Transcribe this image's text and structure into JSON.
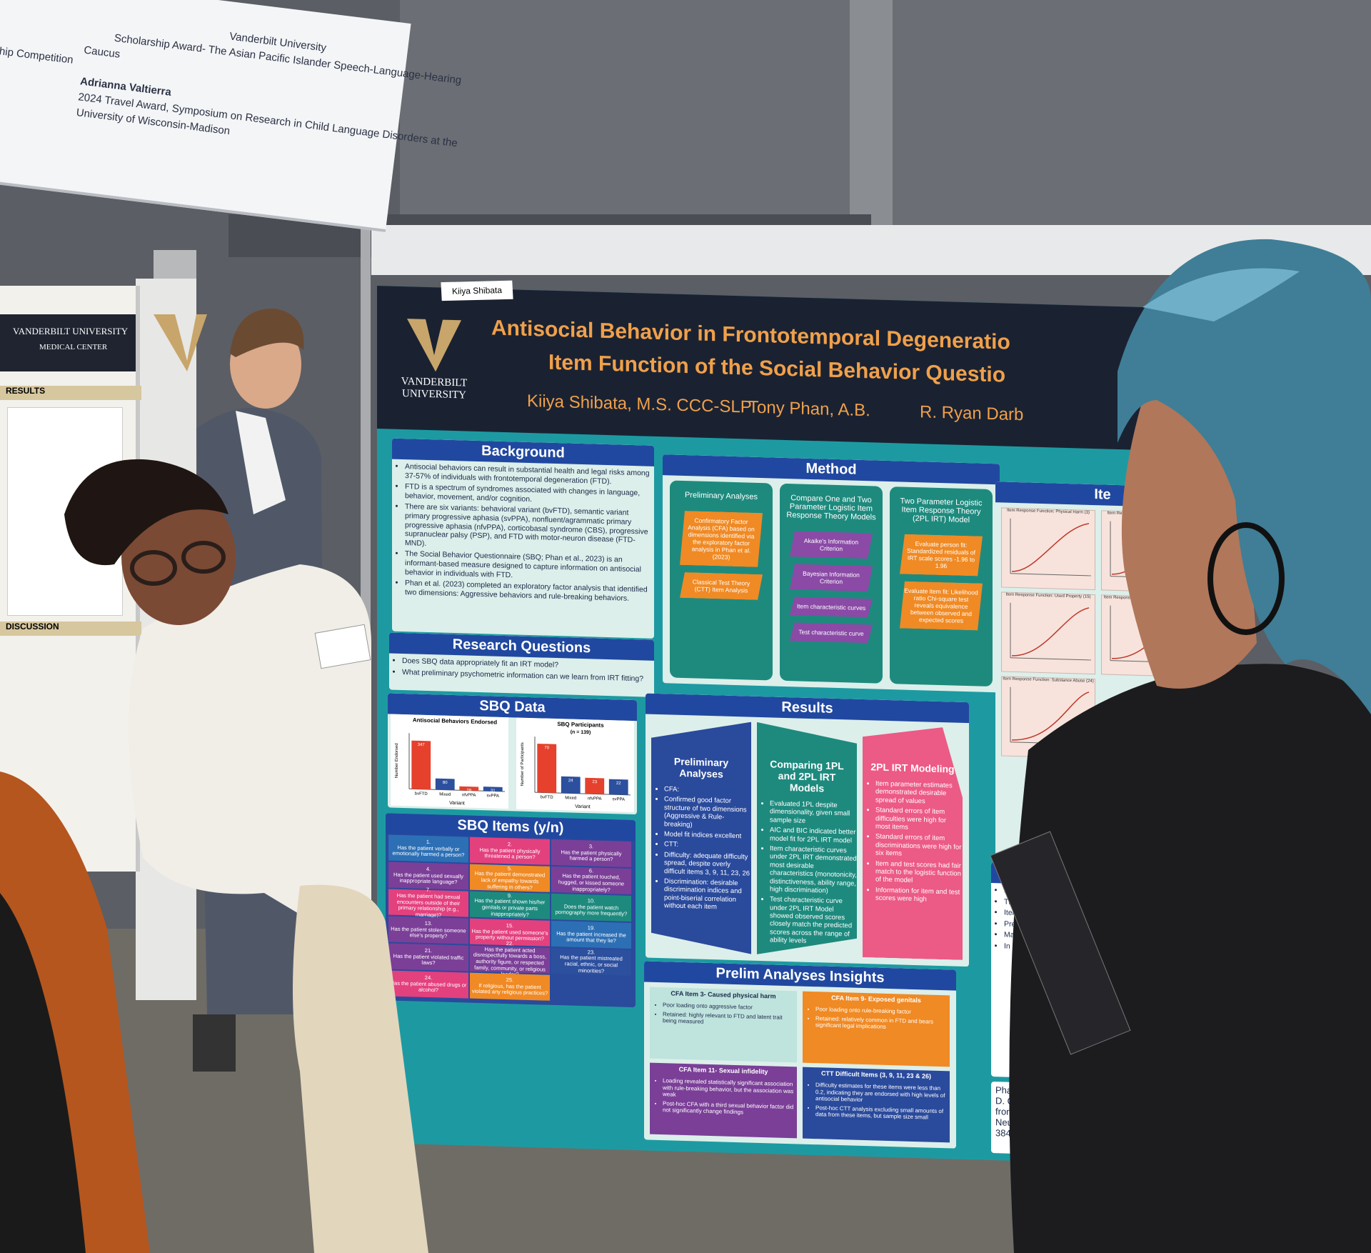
{
  "screen": {
    "lines": [
      "Vanderbilt University",
      "Scholarship Award- The Asian Pacific Islander Speech-Language-Hearing",
      "Caucus",
      "Adrianna Valtierra",
      "2024 Travel Award, Symposium on Research in Child Language Disorders at the",
      "University of Wisconsin-Madison",
      "rship Competition"
    ]
  },
  "left_poster": {
    "header": "VANDERBILT UNIVERSITY",
    "subheader": "MEDICAL CENTER",
    "results": "RESULTS",
    "discussion": "DISCUSSION"
  },
  "poster": {
    "name_tag": "Kiiya Shibata",
    "logo": {
      "line1": "VANDERBILT",
      "line2": "UNIVERSITY"
    },
    "title": [
      "Antisocial Behavior in Frontotemporal Degeneratio",
      "Item Function of the Social Behavior Questio"
    ],
    "authors": [
      "Kiiya Shibata, M.S. CCC-SLP",
      "Tony Phan, A.B.",
      "R. Ryan Darb"
    ],
    "background": {
      "heading": "Background",
      "bullets": [
        "Antisocial behaviors can result in substantial health and legal risks among 37-57% of individuals with frontotemporal degeneration (FTD).",
        "FTD is a spectrum of syndromes associated with changes in language, behavior, movement, and/or cognition.",
        "There are six variants: behavioral variant (bvFTD), semantic variant primary progressive aphasia (svPPA), nonfluent/agrammatic primary progressive aphasia (nfvPPA), corticobasal syndrome (CBS), progressive supranuclear palsy (PSP), and FTD with motor-neuron disease (FTD-MND).",
        "The Social Behavior Questionnaire (SBQ; Phan et al., 2023) is an informant-based measure designed to capture information on antisocial behavior in individuals with FTD.",
        "Phan et al. (2023) completed an exploratory factor analysis that identified two dimensions: Aggressive behaviors and rule-breaking behaviors."
      ]
    },
    "research_questions": {
      "heading": "Research Questions",
      "bullets": [
        "Does SBQ data appropriately fit an IRT model?",
        "What preliminary psychometric information can we learn from IRT fitting?"
      ]
    },
    "sbq_data": {
      "heading": "SBQ Data",
      "charts": [
        {
          "type": "bar",
          "title": "Antisocial Behaviors Endorsed",
          "y_label": "Number Endorsed",
          "x_label": "Variant",
          "categories": [
            "bvFTD",
            "Mixed",
            "nfvPPA",
            "svPPA"
          ],
          "values": [
            347,
            80,
            28,
            31
          ],
          "colors": [
            "#e5412d",
            "#2c4f9e",
            "#e5412d",
            "#2c4f9e"
          ],
          "ylim": [
            0,
            400
          ]
        },
        {
          "type": "bar",
          "title": "SBQ Participants",
          "subtitle": "(n = 139)",
          "y_label": "Number of Participants",
          "x_label": "Variant",
          "categories": [
            "bvFTD",
            "Mixed",
            "nfvPPA",
            "svPPA"
          ],
          "values": [
            70,
            24,
            23,
            22
          ],
          "colors": [
            "#e5412d",
            "#2c4f9e",
            "#e5412d",
            "#2c4f9e"
          ],
          "ylim": [
            0,
            80
          ]
        }
      ]
    },
    "sbq_items": {
      "heading": "SBQ Items (y/n)",
      "items": [
        {
          "number": "1.",
          "text": "Has the patient verbally or emotionally harmed a person?",
          "color": "#2c6fb5"
        },
        {
          "number": "2.",
          "text": "Has the patient physically threatened a person?",
          "color": "#e3407e"
        },
        {
          "number": "3.",
          "text": "Has the patient physically harmed a person?",
          "color": "#7b3f98"
        },
        {
          "number": "4.",
          "text": "Has the patient used sexually inappropriate language?",
          "color": "#7b3f98"
        },
        {
          "number": "5.",
          "text": "Has the patient demonstrated lack of empathy towards suffering in others?",
          "color": "#f08a24"
        },
        {
          "number": "6.",
          "text": "Has the patient touched, hugged, or kissed someone inappropriately?",
          "color": "#7b3f98"
        },
        {
          "number": "7.",
          "text": "Has the patient had sexual encounters outside of their primary relationship (e.g., marriage)?",
          "color": "#e3407e"
        },
        {
          "number": "9.",
          "text": "Has the patient shown his/her genitals or private parts inappropriately?",
          "color": "#1e8a7e"
        },
        {
          "number": "10.",
          "text": "Does the patient watch pornography more frequently?",
          "color": "#1e8a7e"
        },
        {
          "number": "13.",
          "text": "Has the patient stolen someone else's property?",
          "color": "#7b3f98"
        },
        {
          "number": "15.",
          "text": "Has the patient used someone's property without permission?",
          "color": "#e3407e"
        },
        {
          "number": "19.",
          "text": "Has the patient increased the amount that they lie?",
          "color": "#2c6fb5"
        },
        {
          "number": "21.",
          "text": "Has the patient violated traffic laws?",
          "color": "#7b3f98"
        },
        {
          "number": "22.",
          "text": "Has the patient acted disrespectfully towards a boss, authority figure, or respected family, community, or religious leader?",
          "color": "#7b3f98"
        },
        {
          "number": "23.",
          "text": "Has the patient mistreated racial, ethnic, or social minorities?",
          "color": "#2c4f9e"
        },
        {
          "number": "24.",
          "text": "Has the patient abused drugs or alcohol?",
          "color": "#e3407e"
        },
        {
          "number": "25.",
          "text": "If religious, has the patient violated any religious practices?",
          "color": "#f08a24"
        }
      ]
    },
    "method": {
      "heading": "Method",
      "columns": [
        {
          "title": "Preliminary Analyses",
          "step_color": "#f08a24",
          "steps": [
            "Confirmatory Factor Analysis (CFA) based on dimensions identified via the exploratory factor analysis in Phan et al. (2023)",
            "Classical Test Theory (CTT) Item Analysis"
          ]
        },
        {
          "title": "Compare One and Two Parameter Logistic Item Response Theory Models",
          "step_color": "#8a4aa6",
          "steps": [
            "Akaike's Information Criterion",
            "Bayesian Information Criterion",
            "Item characteristic curves",
            "Test characteristic curve"
          ]
        },
        {
          "title": "Two Parameter Logistic Item Response Theory (2PL IRT) Model",
          "step_color": "#f08a24",
          "steps": [
            "Evaluate person fit: Standardized residuals of IRT scale scores -1.96 to 1.96",
            "Evaluate item fit: Likelihood ratio Chi-square test reveals equivalence between observed and expected scores"
          ]
        }
      ]
    },
    "results": {
      "heading": "Results",
      "columns": [
        {
          "title": "Preliminary Analyses",
          "color": "#2a4a9c",
          "bullets": [
            "CFA:",
            "Confirmed good factor structure of two dimensions (Aggressive & Rule-breaking)",
            "Model fit indices excellent",
            "CTT:",
            "Difficulty: adequate difficulty spread, despite overly difficult items 3, 9, 11, 23, 26",
            "Discrimination: desirable discrimination indices and point-biserial correlation without each item"
          ]
        },
        {
          "title": "Comparing 1PL and 2PL IRT Models",
          "color": "#1e8a7e",
          "bullets": [
            "Evaluated 1PL despite dimensionality, given small sample size",
            "AIC and BIC indicated better model fit for 2PL IRT model",
            "Item characteristic curves under 2PL IRT demonstrated most desirable characteristics (monotonicity, distinctiveness, ability range, high discrimination)",
            "Test characteristic curve under 2PL IRT Model showed observed scores closely match the predicted scores across the range of ability levels"
          ]
        },
        {
          "title": "2PL IRT Modeling",
          "color": "#ec5a86",
          "bullets": [
            "Item parameter estimates demonstrated desirable spread of values",
            "Standard errors of item difficulties were high for most items",
            "Standard errors of item discriminations were high for six items",
            "Item and test scores had fair match to the logistic function of the model",
            "Information for item and test scores were high"
          ]
        }
      ]
    },
    "insights": {
      "heading": "Prelim Analyses Insights",
      "boxes": [
        {
          "title": "CFA Item 3- Caused physical harm",
          "color": "#bfe3dd",
          "text_color": "#1b2a4a",
          "bullets": [
            "Poor loading onto aggressive factor",
            "Retained: highly relevant to FTD and latent trait being measured"
          ]
        },
        {
          "title": "CFA Item 9- Exposed genitals",
          "color": "#f08a24",
          "text_color": "#ffffff",
          "bullets": [
            "Poor loading onto rule-breaking factor",
            "Retained: relatively common in FTD and bears significant legal implications"
          ]
        },
        {
          "title": "CFA Item 11- Sexual infidelity",
          "color": "#7b3f98",
          "text_color": "#ffffff",
          "bullets": [
            "Loading revealed statistically significant association with rule-breaking behavior, but the association was weak",
            "Post-hoc CFA with a third sexual behavior factor did not significantly change findings"
          ]
        },
        {
          "title": "CTT Difficult Items (3, 9, 11, 23 & 26)",
          "color": "#2a4a9c",
          "text_color": "#ffffff",
          "bullets": [
            "Difficulty estimates for these items were less than 0.2, indicating they are endorsed with high levels of antisocial behavior",
            "Post-hoc CTT analysis excluding small amounts of data from these items, but sample size small"
          ]
        }
      ]
    },
    "item_functions": {
      "heading": "Ite",
      "plots": [
        "Item Response Function: Physical Harm (3)",
        "Item Response Function: Pornography (10)",
        "Item Response Function: Used Property (15)",
        "Item Response Function: Traffic Violations (21)",
        "Item Response Function: Substance Abuse (24)"
      ]
    },
    "discussion": {
      "heading": "Dis",
      "bullets": [
        "Larger sample",
        "The SBQ c",
        "Items 1, 2",
        "Prelimina",
        "Many",
        "In"
      ]
    },
    "references": [
      "Phan, T. X",
      "D. O., & Da",
      "frontotemp",
      "Neuropsy",
      "384. https"
    ]
  }
}
